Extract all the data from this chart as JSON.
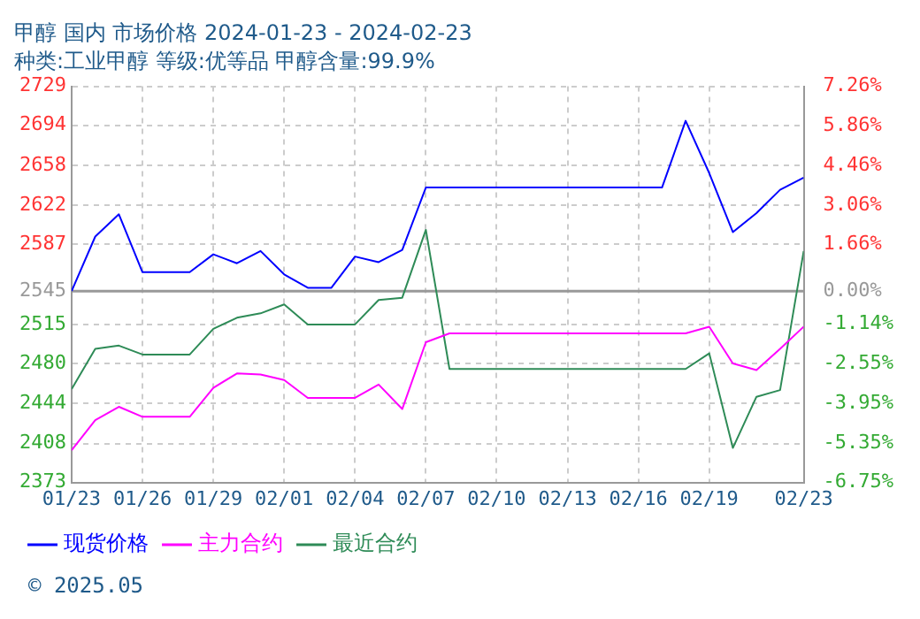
{
  "chart_data": {
    "type": "line",
    "title": "甲醇 国内 市场价格 2024-01-23 - 2024-02-23",
    "subtitle": "种类:工业甲醇 等级:优等品 甲醇含量:99.9%",
    "x": [
      "2024-01-23",
      "2024-01-24",
      "2024-01-25",
      "2024-01-26",
      "2024-01-27",
      "2024-01-28",
      "2024-01-29",
      "2024-01-30",
      "2024-01-31",
      "2024-02-01",
      "2024-02-02",
      "2024-02-03",
      "2024-02-04",
      "2024-02-05",
      "2024-02-06",
      "2024-02-07",
      "2024-02-08",
      "2024-02-09",
      "2024-02-10",
      "2024-02-11",
      "2024-02-12",
      "2024-02-13",
      "2024-02-14",
      "2024-02-15",
      "2024-02-16",
      "2024-02-17",
      "2024-02-18",
      "2024-02-19",
      "2024-02-20",
      "2024-02-21",
      "2024-02-22",
      "2024-02-23"
    ],
    "series": [
      {
        "name": "现货价格",
        "color": "#0000ff",
        "values": [
          2545,
          2594,
          2614,
          2562,
          2562,
          2562,
          2578,
          2570,
          2581,
          2560,
          2548,
          2548,
          2576,
          2571,
          2582,
          2638,
          2638,
          2638,
          2638,
          2638,
          2638,
          2638,
          2638,
          2638,
          2638,
          2638,
          2698,
          2651,
          2598,
          2615,
          2636,
          2647
        ]
      },
      {
        "name": "主力合约",
        "color": "#ff00ff",
        "values": [
          2402,
          2429,
          2441,
          2432,
          2432,
          2432,
          2458,
          2471,
          2470,
          2465,
          2449,
          2449,
          2449,
          2461,
          2439,
          2499,
          2507,
          2507,
          2507,
          2507,
          2507,
          2507,
          2507,
          2507,
          2507,
          2507,
          2507,
          2513,
          2480,
          2474,
          2493,
          2513
        ]
      },
      {
        "name": "最近合约",
        "color": "#2e8b57",
        "values": [
          2457,
          2493,
          2496,
          2488,
          2488,
          2488,
          2511,
          2521,
          2525,
          2533,
          2515,
          2515,
          2515,
          2537,
          2539,
          2600,
          2475,
          2475,
          2475,
          2475,
          2475,
          2475,
          2475,
          2475,
          2475,
          2475,
          2475,
          2489,
          2404,
          2450,
          2456,
          2581
        ]
      }
    ],
    "xlim": [
      "2024-01-23",
      "2024-02-23"
    ],
    "xticks": [
      {
        "value": "2024-01-23",
        "label": "01/23"
      },
      {
        "value": "2024-01-26",
        "label": "01/26"
      },
      {
        "value": "2024-01-29",
        "label": "01/29"
      },
      {
        "value": "2024-02-01",
        "label": "02/01"
      },
      {
        "value": "2024-02-04",
        "label": "02/04"
      },
      {
        "value": "2024-02-07",
        "label": "02/07"
      },
      {
        "value": "2024-02-10",
        "label": "02/10"
      },
      {
        "value": "2024-02-13",
        "label": "02/13"
      },
      {
        "value": "2024-02-16",
        "label": "02/16"
      },
      {
        "value": "2024-02-19",
        "label": "02/19"
      },
      {
        "value": "2024-02-23",
        "label": "02/23"
      }
    ],
    "ylim": [
      2373,
      2729
    ],
    "yticks": [
      2729,
      2694,
      2658,
      2622,
      2587,
      2545,
      2515,
      2480,
      2444,
      2408,
      2373
    ],
    "y2lim": [
      -6.75,
      7.26
    ],
    "y2ticks": [
      {
        "value": 7.26,
        "label": "7.26%"
      },
      {
        "value": 5.86,
        "label": "5.86%"
      },
      {
        "value": 4.46,
        "label": "4.46%"
      },
      {
        "value": 3.06,
        "label": "3.06%"
      },
      {
        "value": 1.66,
        "label": "1.66%"
      },
      {
        "value": 0,
        "label": "0.00%"
      },
      {
        "value": -1.14,
        "label": "-1.14%"
      },
      {
        "value": -2.55,
        "label": "-2.55%"
      },
      {
        "value": -3.95,
        "label": "-3.95%"
      },
      {
        "value": -5.35,
        "label": "-5.35%"
      },
      {
        "value": -6.75,
        "label": "-6.75%"
      }
    ],
    "ref_lines": [
      {
        "axis": "y",
        "value": 2545,
        "color": "#999999"
      }
    ],
    "grid": true,
    "legend": "bottom",
    "marker": "none",
    "line_style": "solid",
    "annotations": [
      "© 2025.05"
    ]
  }
}
